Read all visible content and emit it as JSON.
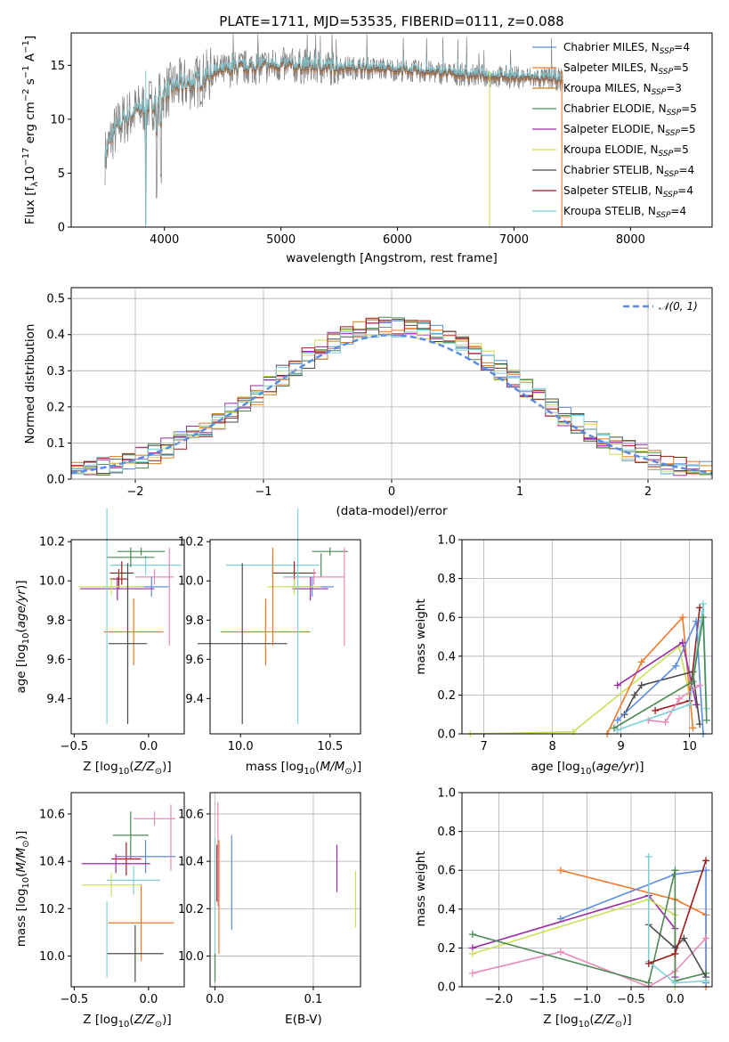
{
  "colors": {
    "chabrier_miles": "#5b8be0",
    "salpeter_miles": "#f07a2a",
    "kroupa_miles": "#d07f1f",
    "chabrier_elodie": "#4c8a52",
    "salpeter_elodie": "#9a2aa8",
    "kroupa_elodie": "#c9e05a",
    "chabrier_stelib": "#4a4a4a",
    "salpeter_stelib": "#9e1a1a",
    "kroupa_stelib": "#7dd0d8",
    "normal_curve": "#5b8be0",
    "spectrum_data": "#7f7f7f",
    "pink": "#e88ab8",
    "grid": "#b0b0b0"
  },
  "chart_data": [
    {
      "id": "spectrum",
      "type": "line",
      "title": "PLATE=1711, MJD=53535, FIBERID=0111, z=0.088",
      "xlabel": "wavelength [Angstrom, rest frame]",
      "ylabel": "Flux [f_λ10^-17 erg cm^-2 s^-1 A^-1]",
      "xlim": [
        3200,
        8700
      ],
      "ylim": [
        0,
        18
      ],
      "xticks": [
        "4000",
        "5000",
        "6000",
        "7000",
        "8000"
      ],
      "yticks": [
        "0",
        "5",
        "10",
        "15"
      ],
      "legend_position": "top-right",
      "x": [
        3490,
        3550,
        3650,
        3800,
        3900,
        4000,
        4100,
        4200,
        4300,
        4400,
        4600,
        4800,
        5000,
        5200,
        5400,
        5600,
        5800,
        6000,
        6200,
        6400,
        6600,
        6800,
        7000,
        7200,
        7400
      ],
      "y": [
        6.5,
        8.5,
        10.0,
        11.0,
        11.5,
        12.5,
        13.0,
        13.3,
        13.5,
        14.2,
        14.7,
        14.9,
        15.0,
        14.9,
        14.8,
        14.8,
        14.7,
        14.6,
        14.4,
        14.3,
        14.1,
        14.0,
        13.9,
        13.8,
        13.7
      ],
      "series": [
        {
          "name": "Chabrier MILES, N_SSP=4"
        },
        {
          "name": "Salpeter MILES, N_SSP=5"
        },
        {
          "name": "Kroupa MILES, N_SSP=3"
        },
        {
          "name": "Chabrier ELODIE, N_SSP=5"
        },
        {
          "name": "Salpeter ELODIE, N_SSP=5"
        },
        {
          "name": "Kroupa ELODIE, N_SSP=5"
        },
        {
          "name": "Chabrier STELIB, N_SSP=4"
        },
        {
          "name": "Salpeter STELIB, N_SSP=4"
        },
        {
          "name": "Kroupa STELIB, N_SSP=4"
        }
      ]
    },
    {
      "id": "residuals",
      "type": "line",
      "xlabel": "(data-model)/error",
      "ylabel": "Normed distribution",
      "xlim": [
        -2.5,
        2.5
      ],
      "ylim": [
        0,
        0.53
      ],
      "xticks": [
        "−2",
        "−1",
        "0",
        "1",
        "2"
      ],
      "yticks": [
        "0.0",
        "0.1",
        "0.2",
        "0.3",
        "0.4",
        "0.5"
      ],
      "grid": true,
      "legend_position": "top-right",
      "bin_width": 0.1,
      "series": [
        {
          "name": "𝒩(0, 1)"
        }
      ]
    },
    {
      "id": "age_vs_Z",
      "type": "scatter",
      "xlabel": "Z [log10(Z/Z⊙)]",
      "ylabel": "age [log10(age/yr)]",
      "xlim": [
        -0.52,
        0.24
      ],
      "ylim": [
        9.22,
        10.21
      ],
      "xticks": [
        "−0.5",
        "0.0"
      ],
      "yticks": [
        "9.4",
        "9.6",
        "9.8",
        "10.0",
        "10.2"
      ],
      "points": [
        {
          "x": -0.02,
          "y": 10.08,
          "xe": 0.24,
          "ye": 0.05,
          "c": "kroupa_stelib"
        },
        {
          "x": -0.05,
          "y": 10.15,
          "xe": 0.16,
          "ye": 0.02,
          "c": "chabrier_elodie"
        },
        {
          "x": -0.12,
          "y": 10.12,
          "xe": 0.16,
          "ye": 0.05,
          "c": "chabrier_elodie"
        },
        {
          "x": -0.18,
          "y": 10.04,
          "xe": 0.08,
          "ye": 0.06,
          "c": "salpeter_stelib"
        },
        {
          "x": -0.2,
          "y": 10.01,
          "xe": 0.06,
          "ye": 0.05,
          "c": "salpeter_stelib"
        },
        {
          "x": 0.04,
          "y": 10.02,
          "xe": 0.13,
          "ye": 0.04,
          "c": "pink"
        },
        {
          "x": 0.02,
          "y": 9.97,
          "xe": 0.12,
          "ye": 0.05,
          "c": "chabrier_miles"
        },
        {
          "x": -0.21,
          "y": 9.96,
          "xe": 0.25,
          "ye": 0.06,
          "c": "salpeter_elodie"
        },
        {
          "x": -0.25,
          "y": 9.97,
          "xe": 0.22,
          "ye": 0.04,
          "c": "kroupa_elodie"
        },
        {
          "x": -0.1,
          "y": 9.74,
          "xe": 0.2,
          "ye": 0.17,
          "c": "salpeter_miles"
        },
        {
          "x": -0.14,
          "y": 9.68,
          "xe": 0.13,
          "ye": 0.41,
          "c": "chabrier_stelib"
        },
        {
          "x": -0.28,
          "y": 9.82,
          "xe": 0.0,
          "ye": 0.55,
          "c": "kroupa_stelib"
        },
        {
          "x": 0.14,
          "y": 9.92,
          "xe": 0.0,
          "ye": 0.25,
          "c": "pink"
        }
      ]
    },
    {
      "id": "age_vs_mass",
      "type": "scatter",
      "xlabel": "mass [log10(M/M⊙)]",
      "xlim": [
        9.83,
        10.67
      ],
      "ylim": [
        9.22,
        10.21
      ],
      "xticks": [
        "10.0",
        "10.5"
      ],
      "yticks": [
        "9.4",
        "9.6",
        "9.8",
        "10.0",
        "10.2"
      ],
      "points": [
        {
          "x": 10.18,
          "y": 10.08,
          "xe": 0.26,
          "ye": 0.05,
          "c": "kroupa_stelib"
        },
        {
          "x": 10.5,
          "y": 10.15,
          "xe": 0.1,
          "ye": 0.02,
          "c": "chabrier_elodie"
        },
        {
          "x": 10.45,
          "y": 10.08,
          "xe": 0.0,
          "ye": 0.06,
          "c": "chabrier_elodie"
        },
        {
          "x": 10.3,
          "y": 10.04,
          "xe": 0.12,
          "ye": 0.06,
          "c": "salpeter_stelib"
        },
        {
          "x": 10.41,
          "y": 10.02,
          "xe": 0.17,
          "ye": 0.04,
          "c": "pink"
        },
        {
          "x": 10.4,
          "y": 9.97,
          "xe": 0.12,
          "ye": 0.05,
          "c": "chabrier_miles"
        },
        {
          "x": 10.39,
          "y": 9.96,
          "xe": 0.1,
          "ye": 0.06,
          "c": "salpeter_elodie"
        },
        {
          "x": 10.3,
          "y": 9.97,
          "xe": 0.15,
          "ye": 0.04,
          "c": "kroupa_elodie"
        },
        {
          "x": 10.14,
          "y": 9.74,
          "xe": 0.25,
          "ye": 0.17,
          "c": "salpeter_miles"
        },
        {
          "x": 10.01,
          "y": 9.68,
          "xe": 0.25,
          "ye": 0.41,
          "c": "chabrier_stelib"
        },
        {
          "x": 10.32,
          "y": 9.82,
          "xe": 0.0,
          "ye": 0.55,
          "c": "kroupa_stelib"
        },
        {
          "x": 10.58,
          "y": 9.92,
          "xe": 0.0,
          "ye": 0.25,
          "c": "pink"
        },
        {
          "x": 10.18,
          "y": 9.92,
          "xe": 0.0,
          "ye": 0.25,
          "c": "salpeter_miles"
        }
      ]
    },
    {
      "id": "mass_weight_vs_age",
      "type": "line",
      "xlabel": "age [log10(age/yr)]",
      "ylabel": "mass weight",
      "xlim": [
        6.68,
        10.33
      ],
      "ylim": [
        0,
        1.0
      ],
      "xticks": [
        "7",
        "8",
        "9",
        "10"
      ],
      "yticks": [
        "0.0",
        "0.2",
        "0.4",
        "0.6",
        "0.8",
        "1.0"
      ],
      "grid": true,
      "series": [
        {
          "c": "kroupa_elodie",
          "x": [
            6.8,
            8.3,
            9.85,
            10.0
          ],
          "y": [
            0.0,
            0.01,
            0.45,
            0.2
          ]
        },
        {
          "c": "salpeter_miles",
          "x": [
            8.8,
            9.3,
            9.9,
            10.05
          ],
          "y": [
            0.0,
            0.37,
            0.6,
            0.03
          ]
        },
        {
          "c": "salpeter_elodie",
          "x": [
            8.95,
            9.9,
            10.1
          ],
          "y": [
            0.25,
            0.47,
            0.15
          ]
        },
        {
          "c": "chabrier_stelib",
          "x": [
            9.05,
            9.2,
            9.3,
            10.05,
            10.15
          ],
          "y": [
            0.1,
            0.2,
            0.25,
            0.32,
            0.05
          ]
        },
        {
          "c": "salpeter_stelib",
          "x": [
            9.5,
            10.0,
            10.15
          ],
          "y": [
            0.12,
            0.17,
            0.65
          ]
        },
        {
          "c": "chabrier_miles",
          "x": [
            8.95,
            9.8,
            10.1,
            10.2
          ],
          "y": [
            0.07,
            0.35,
            0.58,
            0.0
          ]
        },
        {
          "c": "pink",
          "x": [
            9.4,
            9.65,
            9.85,
            10.15
          ],
          "y": [
            0.07,
            0.06,
            0.18,
            0.25
          ]
        },
        {
          "c": "kroupa_stelib",
          "x": [
            8.95,
            10.0,
            10.2,
            10.25
          ],
          "y": [
            0.02,
            0.15,
            0.67,
            0.13
          ]
        },
        {
          "c": "chabrier_elodie",
          "x": [
            8.9,
            10.05,
            10.2,
            10.25
          ],
          "y": [
            0.03,
            0.27,
            0.6,
            0.07
          ]
        }
      ]
    },
    {
      "id": "mass_vs_Z",
      "type": "scatter",
      "xlabel": "Z [log10(Z/Z⊙)]",
      "ylabel": "mass [log10(M/M⊙)]",
      "xlim": [
        -0.52,
        0.24
      ],
      "ylim": [
        9.87,
        10.69
      ],
      "xticks": [
        "−0.5",
        "0.0"
      ],
      "yticks": [
        "10.0",
        "10.2",
        "10.4",
        "10.6"
      ],
      "points": [
        {
          "x": 0.04,
          "y": 10.58,
          "xe": 0.14,
          "ye": 0.03,
          "c": "pink"
        },
        {
          "x": -0.12,
          "y": 10.51,
          "xe": 0.12,
          "ye": 0.1,
          "c": "chabrier_elodie"
        },
        {
          "x": -0.15,
          "y": 10.41,
          "xe": 0.1,
          "ye": 0.07,
          "c": "salpeter_stelib"
        },
        {
          "x": -0.02,
          "y": 10.42,
          "xe": 0.2,
          "ye": 0.07,
          "c": "chabrier_miles"
        },
        {
          "x": -0.22,
          "y": 10.39,
          "xe": 0.23,
          "ye": 0.04,
          "c": "salpeter_elodie"
        },
        {
          "x": -0.1,
          "y": 10.32,
          "xe": 0.18,
          "ye": 0.06,
          "c": "kroupa_stelib"
        },
        {
          "x": -0.25,
          "y": 10.3,
          "xe": 0.2,
          "ye": 0.05,
          "c": "kroupa_elodie"
        },
        {
          "x": -0.05,
          "y": 10.14,
          "xe": 0.22,
          "ye": 0.16,
          "c": "salpeter_miles"
        },
        {
          "x": -0.09,
          "y": 10.01,
          "xe": 0.19,
          "ye": 0.12,
          "c": "chabrier_stelib"
        },
        {
          "x": -0.28,
          "y": 10.07,
          "xe": 0.0,
          "ye": 0.16,
          "c": "kroupa_stelib"
        },
        {
          "x": 0.15,
          "y": 10.5,
          "xe": 0.0,
          "ye": 0.14,
          "c": "pink"
        }
      ]
    },
    {
      "id": "mass_vs_ebv",
      "type": "scatter",
      "xlabel": "E(B-V)",
      "xlim": [
        -0.005,
        0.148
      ],
      "ylim": [
        9.87,
        10.69
      ],
      "xticks": [
        "0.0",
        "0.1"
      ],
      "yticks": [
        "10.0",
        "10.2",
        "10.4",
        "10.6"
      ],
      "points": [
        {
          "x": 0.0,
          "y": 10.2,
          "xe": 0.0,
          "ye": 0.3,
          "c": "kroupa_stelib"
        },
        {
          "x": 0.002,
          "y": 10.35,
          "xe": 0.0,
          "ye": 0.12,
          "c": "salpeter_stelib"
        },
        {
          "x": 0.003,
          "y": 10.43,
          "xe": 0.0,
          "ye": 0.22,
          "c": "pink"
        },
        {
          "x": 0.004,
          "y": 10.25,
          "xe": 0.0,
          "ye": 0.24,
          "c": "salpeter_miles"
        },
        {
          "x": 0.017,
          "y": 10.31,
          "xe": 0.0,
          "ye": 0.2,
          "c": "chabrier_miles"
        },
        {
          "x": 0.124,
          "y": 10.37,
          "xe": 0.0,
          "ye": 0.1,
          "c": "salpeter_elodie"
        },
        {
          "x": 0.143,
          "y": 10.24,
          "xe": 0.0,
          "ye": 0.12,
          "c": "kroupa_elodie"
        },
        {
          "x": 0.0,
          "y": 9.95,
          "xe": 0.0,
          "ye": 0.06,
          "c": "chabrier_elodie"
        }
      ]
    },
    {
      "id": "mass_weight_vs_Z",
      "type": "line",
      "xlabel": "Z [log10(Z/Z⊙)]",
      "ylabel": "mass weight",
      "xlim": [
        -2.42,
        0.42
      ],
      "ylim": [
        0,
        1.0
      ],
      "xticks": [
        "−2.0",
        "−1.5",
        "−1.0",
        "−0.5",
        "0.0"
      ],
      "yticks": [
        "0.0",
        "0.2",
        "0.4",
        "0.6",
        "0.8",
        "1.0"
      ],
      "grid": true,
      "series": [
        {
          "c": "salpeter_miles",
          "x": [
            -1.3,
            0.0,
            0.35,
            0.35
          ],
          "y": [
            0.6,
            0.45,
            0.37,
            0.0
          ]
        },
        {
          "c": "chabrier_miles",
          "x": [
            -1.3,
            0.0,
            0.35,
            0.35
          ],
          "y": [
            0.35,
            0.58,
            0.6,
            0.02
          ]
        },
        {
          "c": "salpeter_elodie",
          "x": [
            -2.3,
            -0.3,
            0.0,
            0.0
          ],
          "y": [
            0.2,
            0.47,
            0.3,
            0.05
          ]
        },
        {
          "c": "kroupa_elodie",
          "x": [
            -2.3,
            -0.3,
            0.0,
            0.0
          ],
          "y": [
            0.17,
            0.45,
            0.37,
            0.0
          ]
        },
        {
          "c": "pink",
          "x": [
            -2.3,
            -1.3,
            -0.3,
            0.0,
            0.35
          ],
          "y": [
            0.07,
            0.18,
            0.0,
            0.08,
            0.25
          ]
        },
        {
          "c": "chabrier_elodie",
          "x": [
            -2.3,
            -0.3,
            0.0,
            0.0,
            0.35
          ],
          "y": [
            0.27,
            0.02,
            0.6,
            0.03,
            0.07
          ]
        },
        {
          "c": "chabrier_stelib",
          "x": [
            -0.3,
            0.0,
            0.1,
            0.35
          ],
          "y": [
            0.32,
            0.2,
            0.25,
            0.05
          ]
        },
        {
          "c": "kroupa_stelib",
          "x": [
            -0.3,
            -0.3,
            0.0,
            0.35
          ],
          "y": [
            0.67,
            0.13,
            0.02,
            0.03
          ]
        },
        {
          "c": "salpeter_stelib",
          "x": [
            -0.3,
            0.0,
            0.35
          ],
          "y": [
            0.12,
            0.17,
            0.65
          ]
        }
      ]
    }
  ]
}
